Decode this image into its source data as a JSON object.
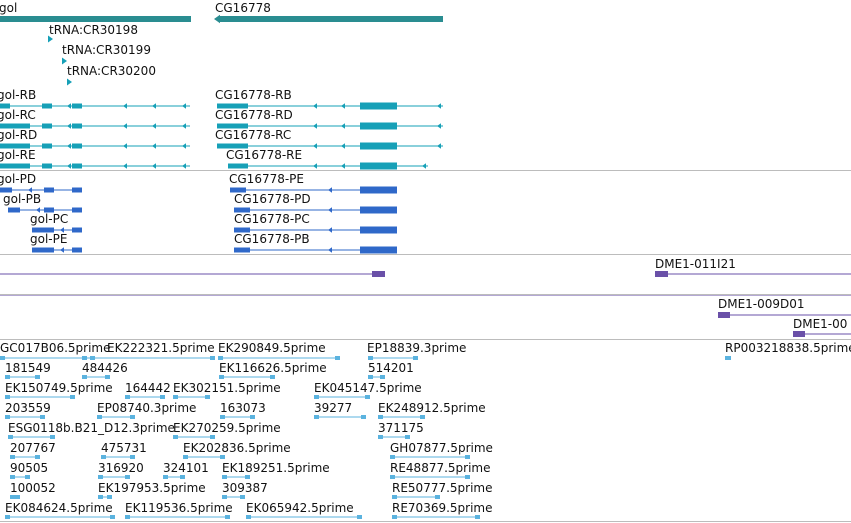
{
  "colors": {
    "gene": "#2a8d91",
    "rna": "#16a0b7",
    "protein": "#2f68c9",
    "clone": "#6a50a8",
    "est": "#5bb3df",
    "separator": "#bcbcbc",
    "text": "#111111"
  },
  "tracks": {
    "genes": [
      "gol",
      "CG16778"
    ],
    "trna": [
      "tRNA:CR30198",
      "tRNA:CR30199",
      "tRNA:CR30200"
    ],
    "transcripts": [
      "gol-RB",
      "gol-RC",
      "gol-RD",
      "gol-RE",
      "CG16778-RB",
      "CG16778-RD",
      "CG16778-RC",
      "CG16778-RE"
    ],
    "proteins": [
      "gol-PD",
      "gol-PB",
      "gol-PC",
      "gol-PE",
      "CG16778-PE",
      "CG16778-PD",
      "CG16778-PC",
      "CG16778-PB"
    ],
    "clones": [
      "DME1-011I21",
      "DME1-009D01",
      "DME1-00"
    ],
    "ests": [
      "GC017B06.5prime",
      "EK222321.5prime",
      "EK290849.5prime",
      "EP18839.3prime",
      "RP003218838.5prime",
      "181549",
      "484426",
      "EK116626.5prime",
      "514201",
      "EK150749.5prime",
      "164442",
      "EK302151.5prime",
      "EK045147.5prime",
      "203559",
      "EP08740.3prime",
      "163073",
      "39277",
      "EK248912.5prime",
      "ESG0118b.B21_D12.3prime",
      "EK270259.5prime",
      "371175",
      "207767",
      "475731",
      "EK202836.5prime",
      "GH07877.5prime",
      "90505",
      "316920",
      "324101",
      "EK189251.5prime",
      "RE48877.5prime",
      "100052",
      "EK197953.5prime",
      "309387",
      "RE50777.5prime",
      "EK084624.5prime",
      "EK119536.5prime",
      "EK065942.5prime",
      "RE70369.5prime"
    ]
  }
}
